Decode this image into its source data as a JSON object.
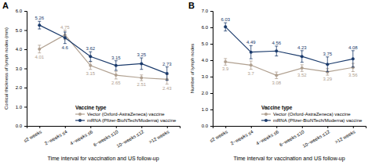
{
  "chart_data": [
    {
      "type": "line",
      "title": "A",
      "x_label": "Time interval for vaccination and US follow-up",
      "y_label": "Cortical thickness of lymph nodes (mm)",
      "categories": [
        "≤2 weeks",
        "2~weeks ≤4",
        "4~weeks ≤6",
        "6~weeks ≤10",
        "10~weeks ≤12",
        ">12 weeks"
      ],
      "ylim": [
        0.0,
        6.0
      ],
      "yticks": [
        {
          "value": 0.0,
          "label": "0.0"
        },
        {
          "value": 1.0,
          "label": "1.0"
        },
        {
          "value": 2.0,
          "label": "2.0"
        },
        {
          "value": 3.0,
          "label": "3.0"
        },
        {
          "value": 4.0,
          "label": "4.0"
        },
        {
          "value": 5.0,
          "label": "5.0"
        },
        {
          "value": 6.0,
          "label": "6.0"
        }
      ],
      "grid": false,
      "legend": "lower right",
      "legend_title": "Vaccine type",
      "data_labels": true,
      "series": [
        {
          "name": "Vector (Oxford-AstraZeneca) vaccine",
          "color": "#b0a090",
          "marker": "circle",
          "line_style": "solid",
          "values": [
            4.01,
            4.75,
            3.15,
            2.65,
            2.51,
            2.43
          ],
          "errors": [
            0.2,
            0.25,
            0.2,
            0.2,
            0.15,
            0.25
          ]
        },
        {
          "name": "mRNA (Pfizer-BioNTech/Moderna) vaccine",
          "color": "#1a3a6b",
          "marker": "circle",
          "line_style": "solid",
          "values": [
            5.26,
            4.6,
            3.62,
            3.15,
            3.25,
            2.73
          ],
          "errors": [
            0.2,
            0.3,
            0.25,
            0.25,
            0.3,
            0.35
          ]
        }
      ]
    },
    {
      "type": "line",
      "title": "B",
      "x_label": "Time interval for vaccination and US follow-up",
      "y_label": "Number of lymph nodes",
      "categories": [
        "≤2 weeks",
        "2~weeks ≤4",
        "4~weeks ≤6",
        "6~weeks ≤10",
        "10~weeks ≤12",
        ">12 weeks"
      ],
      "ylim": [
        0.0,
        7.0
      ],
      "yticks": [
        {
          "value": 0.0,
          "label": "0.0"
        },
        {
          "value": 1.0,
          "label": "1.0"
        },
        {
          "value": 2.0,
          "label": "2.0"
        },
        {
          "value": 3.0,
          "label": "3.0"
        },
        {
          "value": 4.0,
          "label": "4.0"
        },
        {
          "value": 5.0,
          "label": "5.0"
        },
        {
          "value": 6.0,
          "label": "6.0"
        },
        {
          "value": 7.0,
          "label": "7.0"
        }
      ],
      "grid": false,
      "legend": "lower right",
      "legend_title": "Vaccine type",
      "data_labels": true,
      "series": [
        {
          "name": "Vector (Oxford-AstraZeneca) vaccine",
          "color": "#b0a090",
          "marker": "circle",
          "line_style": "solid",
          "values": [
            3.9,
            3.7,
            3.08,
            3.52,
            3.29,
            3.56
          ],
          "errors": [
            0.2,
            0.25,
            0.2,
            0.2,
            0.2,
            0.25
          ]
        },
        {
          "name": "mRNA (Pfizer-BioNTech/Moderna) vaccine",
          "color": "#1a3a6b",
          "marker": "circle",
          "line_style": "solid",
          "values": [
            6.03,
            4.49,
            4.56,
            4.23,
            3.75,
            4.08
          ],
          "errors": [
            0.25,
            0.4,
            0.3,
            0.35,
            0.45,
            0.5
          ]
        }
      ]
    }
  ]
}
